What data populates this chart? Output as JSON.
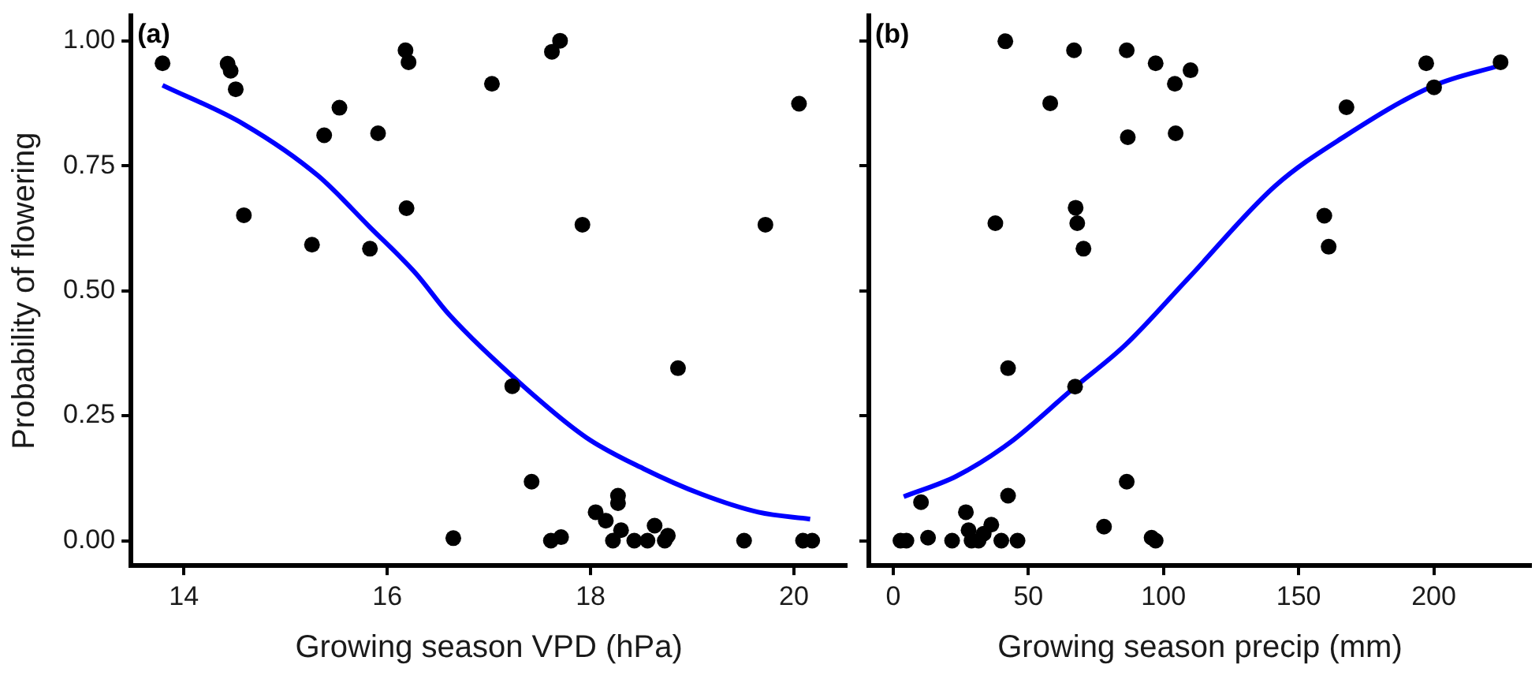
{
  "chart_data": [
    {
      "type": "scatter",
      "xlabel": "Growing season VPD (hPa)",
      "ylabel": "Probability of flowering",
      "annotations": [
        "(a)"
      ],
      "xlim": [
        13.48,
        20.52
      ],
      "xticks": [
        14,
        16,
        18,
        20
      ],
      "ylim": [
        -0.05,
        1.05
      ],
      "yticks": [
        {
          "value": 0,
          "label": "0.00"
        },
        {
          "value": 0.25,
          "label": "0.25"
        },
        {
          "value": 0.5,
          "label": "0.50"
        },
        {
          "value": 0.75,
          "label": "0.75"
        },
        {
          "value": 1,
          "label": "1.00"
        }
      ],
      "grid": false,
      "legend": false,
      "series": [
        {
          "marker": "circle",
          "color": "#000000",
          "x": [
            13.79,
            14.43,
            14.46,
            14.51,
            15.53,
            15.38,
            15.91,
            14.59,
            16.19,
            15.26,
            15.83,
            16.18,
            16.21,
            17.03,
            17.7,
            17.62,
            17.92,
            20.05,
            19.72,
            17.23,
            18.86,
            17.42,
            16.65,
            18.05,
            18.15,
            18.27,
            18.27,
            18.3,
            18.22,
            18.43,
            18.56,
            18.63,
            18.76,
            18.73,
            17.61,
            17.71,
            19.51,
            20.09,
            20.18
          ],
          "values": [
            0.955,
            0.954,
            0.94,
            0.903,
            0.866,
            0.811,
            0.815,
            0.651,
            0.665,
            0.592,
            0.584,
            0.981,
            0.957,
            0.914,
            1.0,
            0.978,
            0.632,
            0.874,
            0.632,
            0.309,
            0.345,
            0.118,
            0.005,
            0.057,
            0.04,
            0.09,
            0.075,
            0.021,
            0.0,
            0.0,
            0.0,
            0.03,
            0.01,
            0.0,
            0.0,
            0.007,
            0.0,
            0.0,
            0.0
          ]
        },
        {
          "type": "line",
          "marker": "none",
          "color": "#0000ff",
          "x": [
            13.79,
            14.59,
            15.32,
            15.83,
            16.28,
            16.61,
            17.34,
            17.96,
            18.52,
            19.09,
            19.65,
            20.16
          ],
          "values": [
            0.911,
            0.833,
            0.73,
            0.627,
            0.535,
            0.452,
            0.309,
            0.206,
            0.144,
            0.093,
            0.057,
            0.043
          ]
        }
      ]
    },
    {
      "type": "scatter",
      "xlabel": "Growing season precip (mm)",
      "annotations": [
        "(b)"
      ],
      "xlim": [
        -9,
        236
      ],
      "xticks": [
        0,
        50,
        100,
        150,
        200
      ],
      "ylim": [
        -0.05,
        1.05
      ],
      "yticks": [
        0,
        0.25,
        0.5,
        0.75,
        1
      ],
      "tick_labels": "x",
      "grid": false,
      "legend": false,
      "series": [
        {
          "marker": "circle",
          "color": "#000000",
          "x": [
            41.5,
            66.9,
            86.4,
            97.1,
            58.1,
            86.8,
            67.5,
            68.1,
            37.8,
            70.4,
            110.0,
            104.2,
            104.5,
            167.7,
            197.2,
            200.1,
            224.7,
            159.5,
            161.1,
            42.5,
            67.3,
            86.4,
            10.3,
            42.5,
            26.9,
            27.9,
            36.3,
            33.5,
            78.0,
            12.9,
            2.7,
            4.9,
            21.8,
            29.0,
            31.6,
            40.0,
            46.0,
            95.6,
            97.1
          ],
          "values": [
            0.999,
            0.981,
            0.981,
            0.955,
            0.875,
            0.807,
            0.666,
            0.635,
            0.635,
            0.584,
            0.941,
            0.914,
            0.815,
            0.867,
            0.955,
            0.907,
            0.957,
            0.65,
            0.588,
            0.345,
            0.308,
            0.118,
            0.077,
            0.09,
            0.057,
            0.021,
            0.032,
            0.014,
            0.028,
            0.006,
            0.0,
            0.0,
            0.0,
            0.0,
            0.0,
            0.0,
            0.0,
            0.006,
            0.0
          ]
        },
        {
          "type": "line",
          "marker": "none",
          "color": "#0000ff",
          "x": [
            3.9,
            23.4,
            42.9,
            66.3,
            85.8,
            109.2,
            141.4,
            166.8,
            199.9,
            224.7
          ],
          "values": [
            0.088,
            0.129,
            0.195,
            0.303,
            0.391,
            0.525,
            0.71,
            0.808,
            0.91,
            0.951
          ]
        }
      ]
    }
  ]
}
